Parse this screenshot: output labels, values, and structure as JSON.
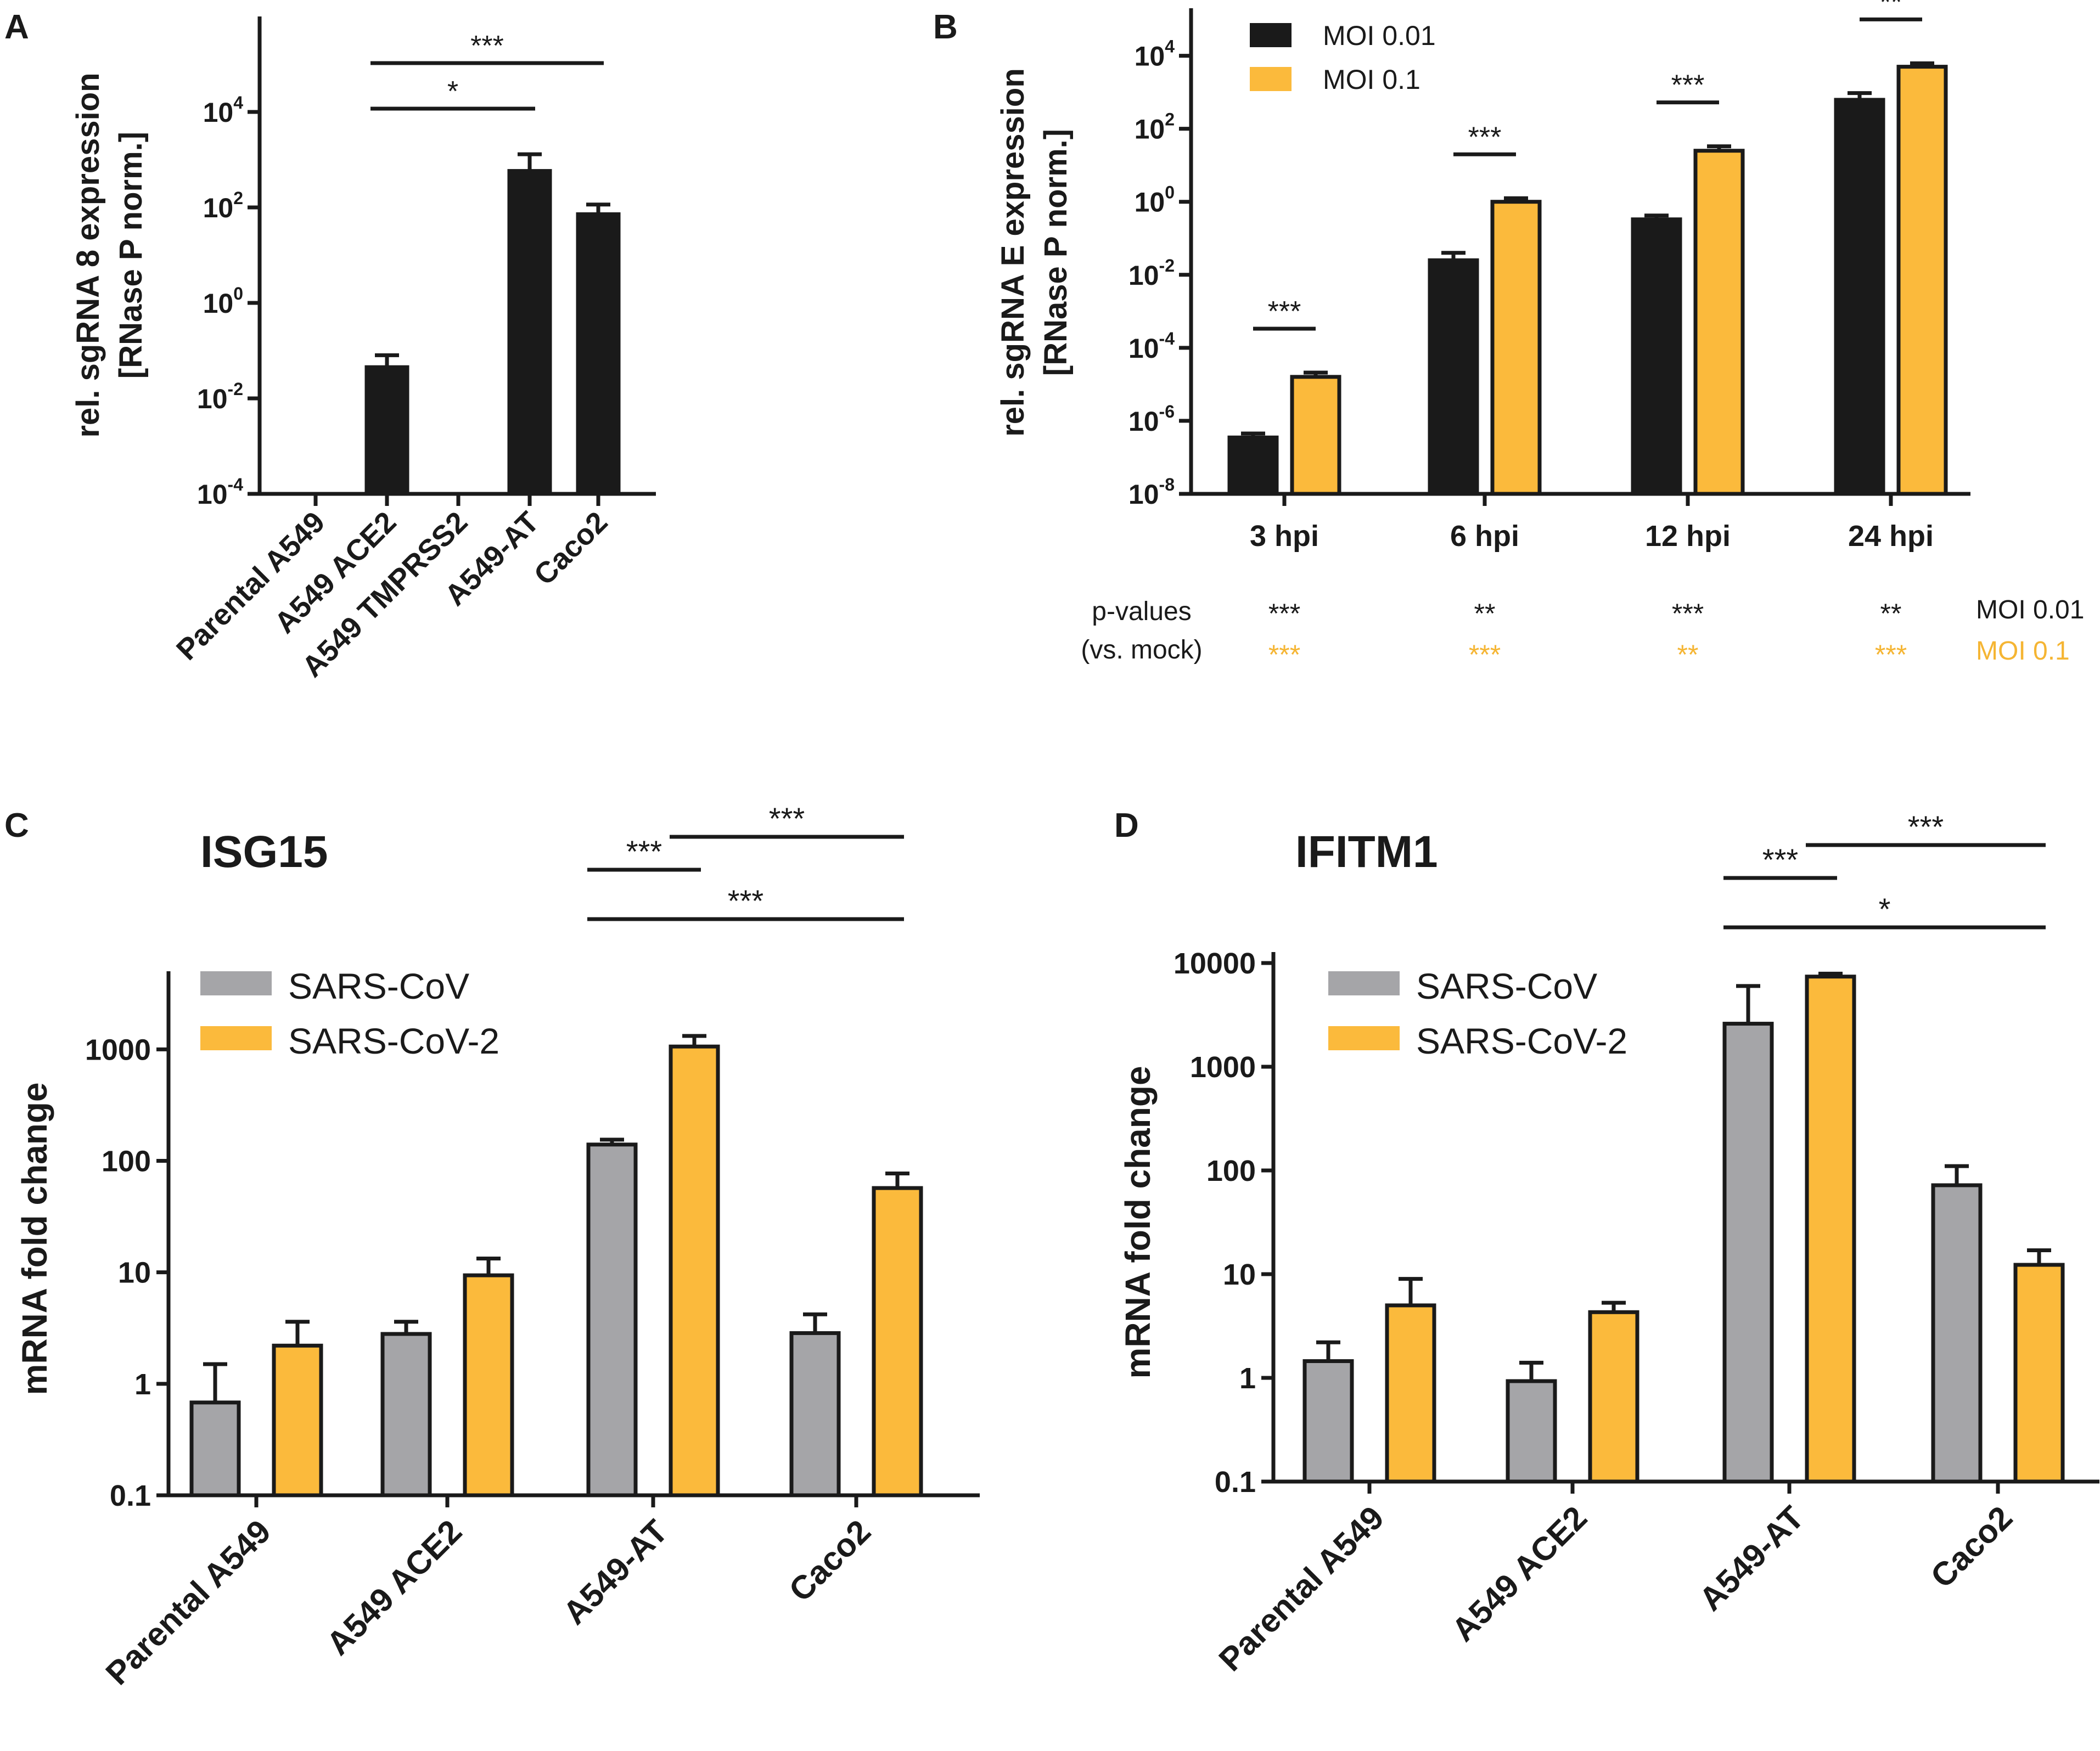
{
  "colors": {
    "black_series": "#1a1a1a",
    "orange_series": "#fbba3c",
    "gray_series": "#a5a5a8",
    "orange_text": "#f5b533",
    "axis": "#1a1a1a"
  },
  "chart_data": [
    {
      "panel": "A",
      "type": "bar",
      "yscale": "log10",
      "ylabel_line1": "rel. sgRNA 8 expression",
      "ylabel_line2": "[RNase P norm.]",
      "yticks": [
        {
          "value": 0.0001,
          "base": "10",
          "exp": "-4"
        },
        {
          "value": 0.01,
          "base": "10",
          "exp": "-2"
        },
        {
          "value": 1,
          "base": "10",
          "exp": "0"
        },
        {
          "value": 100,
          "base": "10",
          "exp": "2"
        },
        {
          "value": 10000,
          "base": "10",
          "exp": "4"
        }
      ],
      "ylim": [
        0.0001,
        1000000
      ],
      "categories": [
        "Parental A549",
        "A549 ACE2",
        "A549 TMPRSS2",
        "A549-AT",
        "Caco2"
      ],
      "series": [
        {
          "name": "sgRNA 8",
          "color_key": "black_series",
          "values": [
            null,
            0.045,
            null,
            580,
            72
          ],
          "errors": [
            null,
            0.08,
            null,
            1300,
            115
          ]
        }
      ],
      "brackets": [
        {
          "from": 1,
          "to": 4,
          "label": "***",
          "level": 2
        },
        {
          "from": 1,
          "to": 3,
          "label": "*",
          "level": 1
        }
      ]
    },
    {
      "panel": "B",
      "type": "bar",
      "yscale": "log10",
      "ylabel_line1": "rel. sgRNA E expression",
      "ylabel_line2": "[RNase P norm.]",
      "yticks": [
        {
          "value": 1e-08,
          "base": "10",
          "exp": "-8"
        },
        {
          "value": 1e-06,
          "base": "10",
          "exp": "-6"
        },
        {
          "value": 0.0001,
          "base": "10",
          "exp": "-4"
        },
        {
          "value": 0.01,
          "base": "10",
          "exp": "-2"
        },
        {
          "value": 1,
          "base": "10",
          "exp": "0"
        },
        {
          "value": 100,
          "base": "10",
          "exp": "2"
        },
        {
          "value": 10000,
          "base": "10",
          "exp": "4"
        }
      ],
      "ylim": [
        1e-08,
        200000
      ],
      "categories": [
        "3 hpi",
        "6 hpi",
        "12 hpi",
        "24 hpi"
      ],
      "series": [
        {
          "name": "MOI 0.01",
          "color_key": "black_series",
          "values": [
            3.5e-07,
            0.025,
            0.33,
            620
          ],
          "errors": [
            4.5e-07,
            0.04,
            0.42,
            950
          ]
        },
        {
          "name": "MOI 0.1",
          "color_key": "orange_series",
          "values": [
            1.6e-05,
            1.0,
            25,
            5000
          ],
          "errors": [
            2.1e-05,
            1.25,
            33,
            6200
          ]
        }
      ],
      "brackets": [
        {
          "category": 0,
          "label": "***"
        },
        {
          "category": 1,
          "label": "***"
        },
        {
          "category": 2,
          "label": "***"
        },
        {
          "category": 3,
          "label": "**"
        }
      ],
      "pvalues": {
        "label_line1": "p-values",
        "label_line2": "(vs. mock)",
        "moi001": [
          "***",
          "**",
          "***",
          "**"
        ],
        "moi01": [
          "***",
          "***",
          "**",
          "***"
        ],
        "moi001_label": "MOI 0.01",
        "moi01_label": "MOI 0.1"
      }
    },
    {
      "panel": "C",
      "type": "bar",
      "yscale": "log10",
      "title": "ISG15",
      "ylabel": "mRNA fold change",
      "yticks": [
        {
          "value": 0.1,
          "label": "0.1"
        },
        {
          "value": 1,
          "label": "1"
        },
        {
          "value": 10,
          "label": "10"
        },
        {
          "value": 100,
          "label": "100"
        },
        {
          "value": 1000,
          "label": "1000"
        }
      ],
      "ylim": [
        0.1,
        4000
      ],
      "categories": [
        "Parental A549",
        "A549 ACE2",
        "A549-AT",
        "Caco2"
      ],
      "series": [
        {
          "name": "SARS-CoV",
          "color_key": "gray_series",
          "values": [
            0.68,
            2.8,
            140,
            2.85
          ],
          "errors": [
            1.5,
            3.6,
            155,
            4.2
          ]
        },
        {
          "name": "SARS-CoV-2",
          "color_key": "orange_series",
          "values": [
            2.2,
            9.4,
            1060,
            57
          ],
          "errors": [
            3.6,
            13.3,
            1320,
            77
          ]
        }
      ],
      "brackets": [
        {
          "from_bar": [
            2,
            0
          ],
          "to_bar": [
            2,
            1
          ],
          "label": "***",
          "level": 2
        },
        {
          "from_bar": [
            2,
            1
          ],
          "to_bar": [
            3,
            1
          ],
          "label": "***",
          "level": 3
        },
        {
          "from_bar": [
            2,
            0
          ],
          "to_bar": [
            3,
            1
          ],
          "label": "***",
          "level": 1
        }
      ]
    },
    {
      "panel": "D",
      "type": "bar",
      "yscale": "log10",
      "title": "IFITM1",
      "ylabel": "mRNA fold change",
      "yticks": [
        {
          "value": 0.1,
          "label": "0.1"
        },
        {
          "value": 1,
          "label": "1"
        },
        {
          "value": 10,
          "label": "10"
        },
        {
          "value": 100,
          "label": "100"
        },
        {
          "value": 1000,
          "label": "1000"
        },
        {
          "value": 10000,
          "label": "10000"
        }
      ],
      "ylim": [
        0.1,
        10000
      ],
      "categories": [
        "Parental A549",
        "A549 ACE2",
        "A549-AT",
        "Caco2"
      ],
      "series": [
        {
          "name": "SARS-CoV",
          "color_key": "gray_series",
          "values": [
            1.45,
            0.93,
            2600,
            72
          ],
          "errors": [
            2.2,
            1.4,
            6000,
            110
          ]
        },
        {
          "name": "SARS-CoV-2",
          "color_key": "orange_series",
          "values": [
            5.0,
            4.3,
            7400,
            12.3
          ],
          "errors": [
            9.0,
            5.3,
            7900,
            17
          ]
        }
      ],
      "brackets": [
        {
          "from_bar": [
            2,
            0
          ],
          "to_bar": [
            2,
            1
          ],
          "label": "***",
          "level": 2
        },
        {
          "from_bar": [
            2,
            1
          ],
          "to_bar": [
            3,
            1
          ],
          "label": "***",
          "level": 3
        },
        {
          "from_bar": [
            2,
            0
          ],
          "to_bar": [
            3,
            1
          ],
          "label": "*",
          "level": 1
        }
      ]
    }
  ]
}
